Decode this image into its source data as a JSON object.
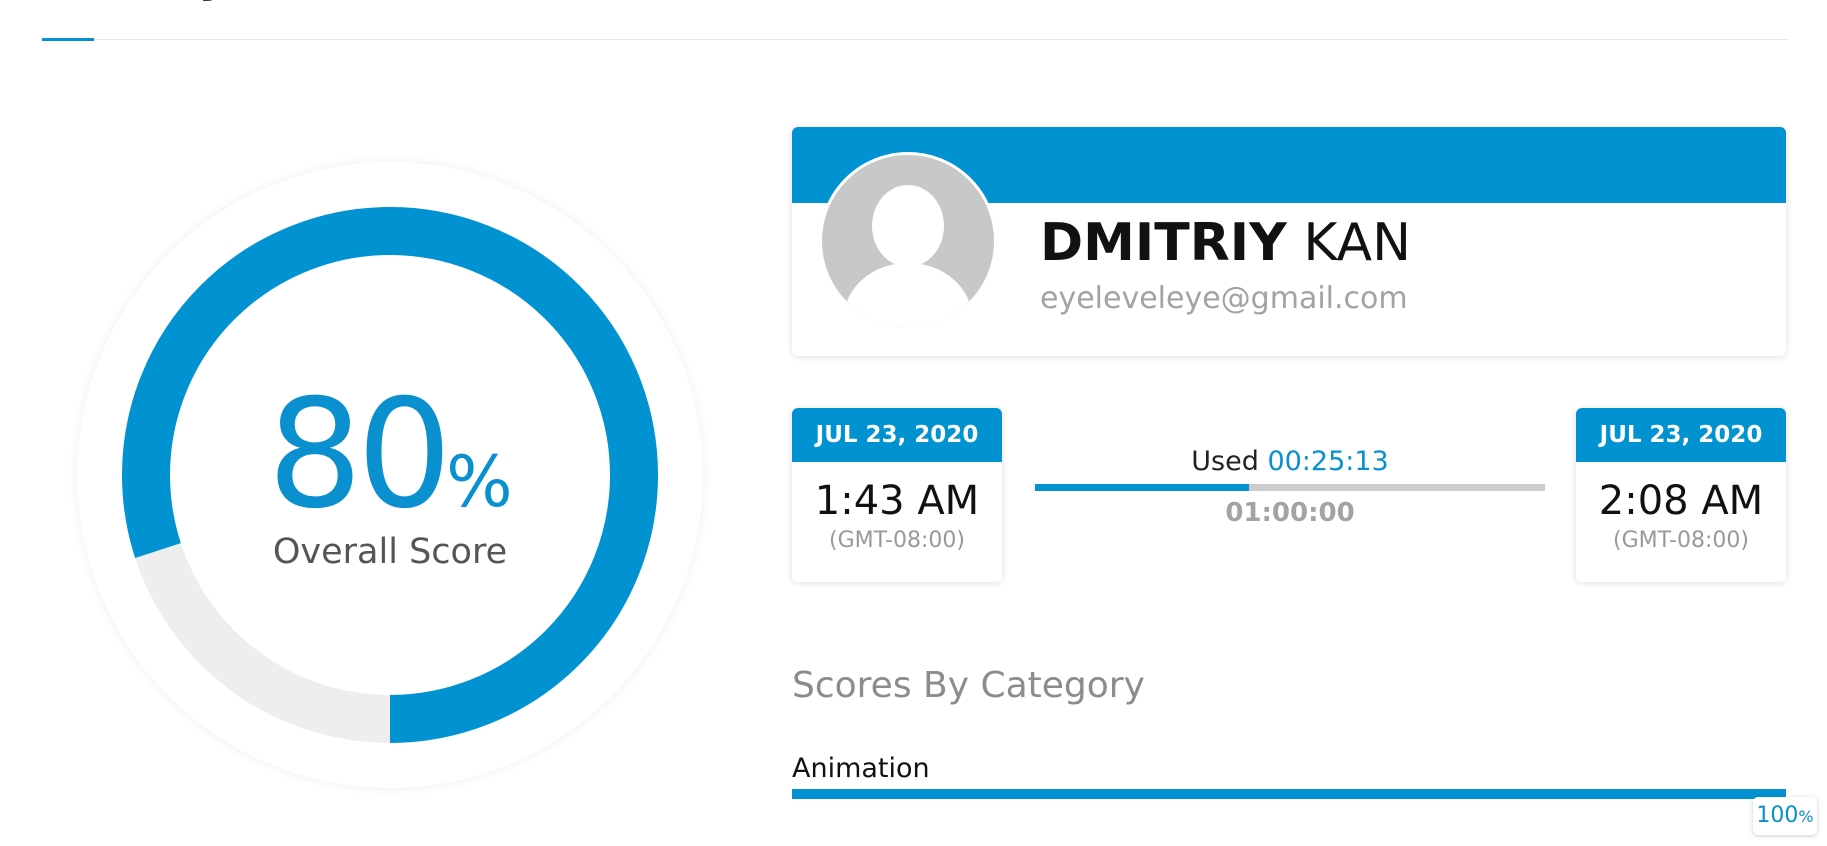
{
  "score": {
    "value": "80",
    "unit": "%",
    "label": "Overall Score",
    "fraction": 0.8
  },
  "colors": {
    "accent": "#0193d1",
    "track": "#eeeeee"
  },
  "profile": {
    "first_name": "DMITRIY",
    "last_name": "KAN",
    "email": "eyeleveleye@gmail.com",
    "avatar_icon": "user-avatar-placeholder-icon"
  },
  "session": {
    "start": {
      "date": "JUL 23, 2020",
      "time": "1:43 AM",
      "tz": "(GMT-08:00)"
    },
    "end": {
      "date": "JUL 23, 2020",
      "time": "2:08 AM",
      "tz": "(GMT-08:00)"
    },
    "used_label": "Used",
    "used_value": "00:25:13",
    "total": "01:00:00",
    "used_fraction": 0.42
  },
  "categories": {
    "title": "Scores By Category",
    "items": [
      {
        "label": "Animation",
        "value": "100",
        "unit": "%",
        "fraction": 1.0
      }
    ]
  }
}
